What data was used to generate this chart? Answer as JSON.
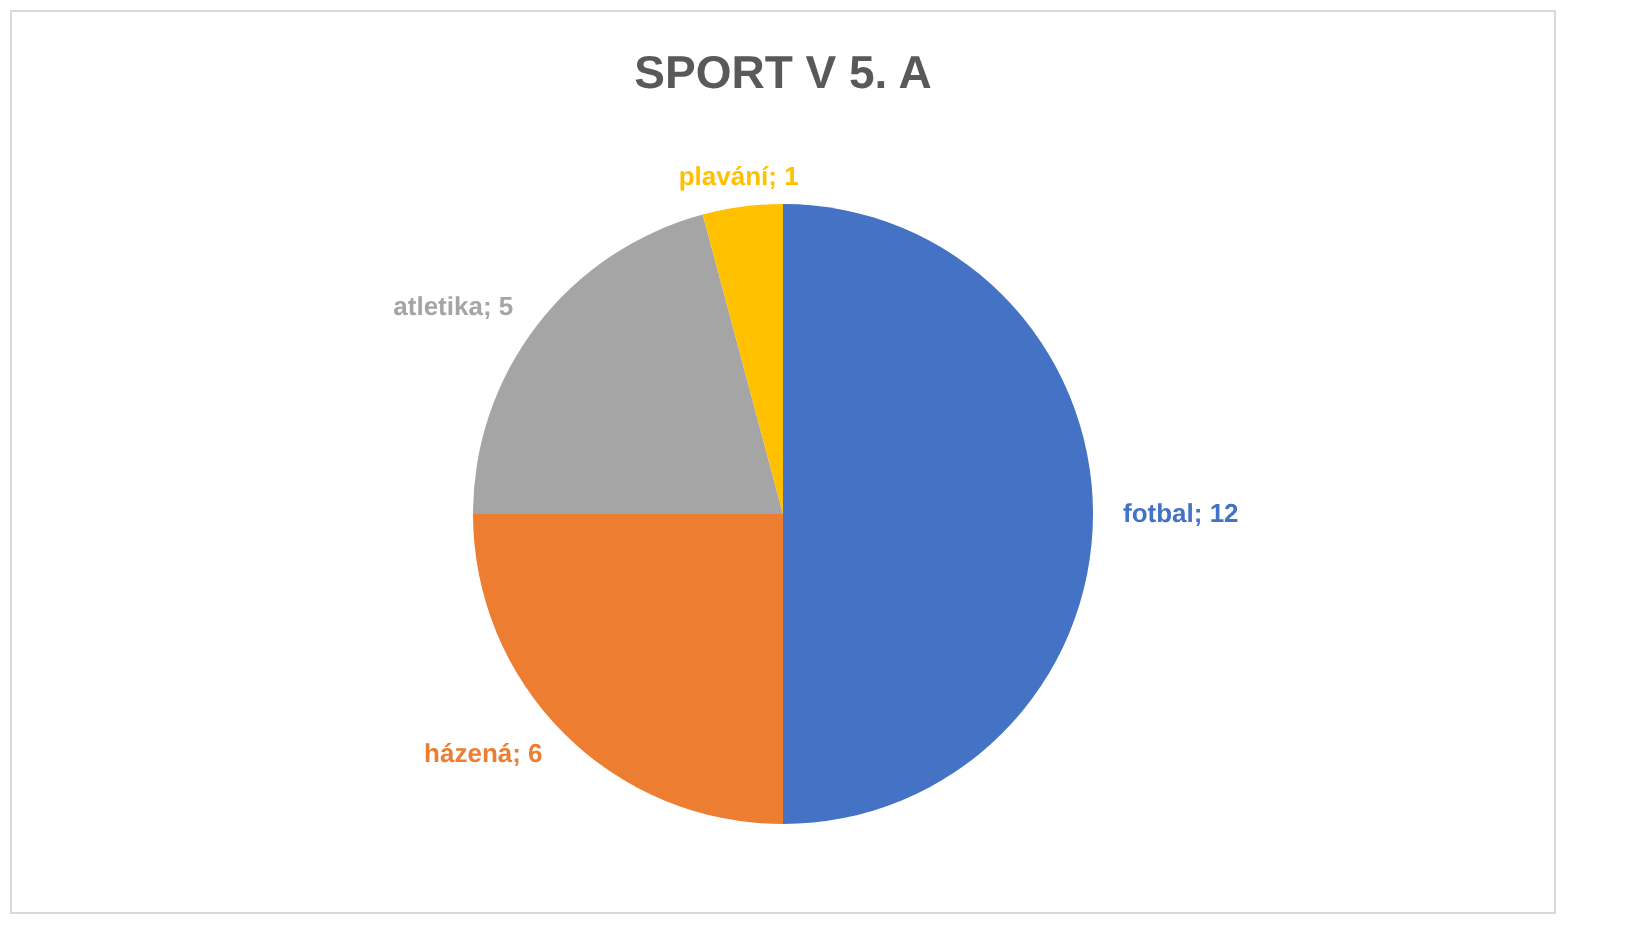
{
  "chart_data": {
    "type": "pie",
    "title": "SPORT V 5. A",
    "categories": [
      "fotbal",
      "házená",
      "atletika",
      "plavání"
    ],
    "values": [
      12,
      6,
      5,
      1
    ],
    "colors": [
      "#4472c4",
      "#ed7d31",
      "#a5a5a5",
      "#ffc000"
    ],
    "value_labels": [
      "; 12",
      "; 6",
      "; 5",
      "; 1"
    ]
  }
}
